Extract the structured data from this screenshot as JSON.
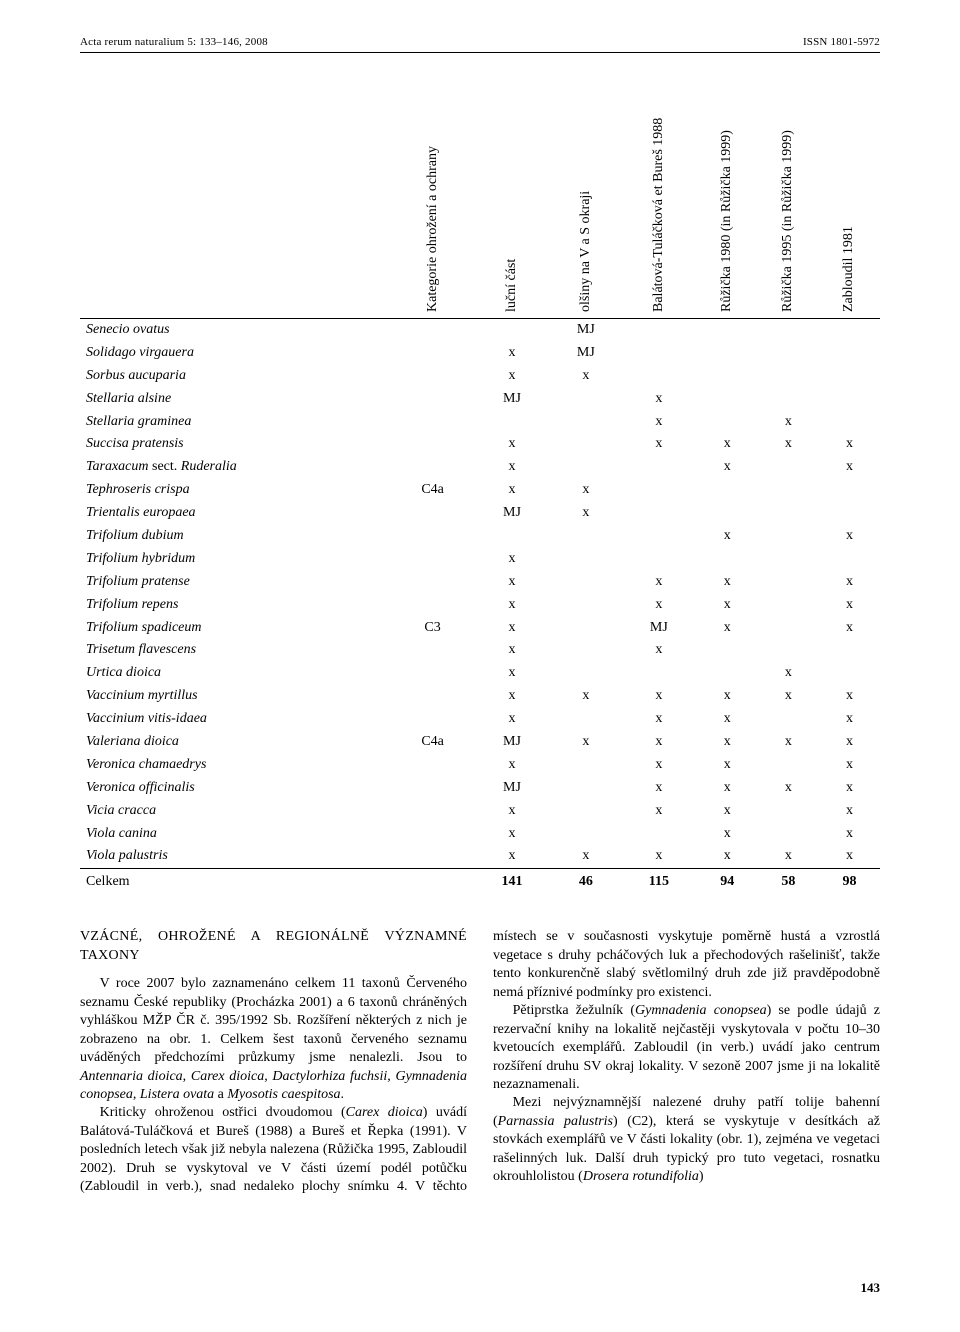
{
  "running_head": {
    "left": "Acta rerum naturalium 5: 133–146, 2008",
    "right": "ISSN 1801-5972"
  },
  "table": {
    "columns": [
      "Kategorie ohrožení a ochrany",
      "luční část",
      "olšiny na V a S okraji",
      "Balátová-Tuláčková et Bureš 1988",
      "Růžička 1980 (in Růžička 1999)",
      "Růžička 1995 (in Růžička 1999)",
      "Zabloudil 1981"
    ],
    "rows": [
      {
        "name": "Senecio ovatus",
        "cells": [
          "",
          "",
          "MJ",
          "",
          "",
          "",
          ""
        ]
      },
      {
        "name": "Solidago virgauera",
        "cells": [
          "",
          "x",
          "MJ",
          "",
          "",
          "",
          ""
        ]
      },
      {
        "name": "Sorbus aucuparia",
        "cells": [
          "",
          "x",
          "x",
          "",
          "",
          "",
          ""
        ]
      },
      {
        "name": "Stellaria alsine",
        "cells": [
          "",
          "MJ",
          "",
          "x",
          "",
          "",
          ""
        ]
      },
      {
        "name": "Stellaria graminea",
        "cells": [
          "",
          "",
          "",
          "x",
          "",
          "x",
          ""
        ]
      },
      {
        "name": "Succisa pratensis",
        "cells": [
          "",
          "x",
          "",
          "x",
          "x",
          "x",
          "x"
        ]
      },
      {
        "name": "Taraxacum <span class=\"nonitalic\">sect.</span> Ruderalia",
        "raw": true,
        "cells": [
          "",
          "x",
          "",
          "",
          "x",
          "",
          "x"
        ]
      },
      {
        "name": "Tephroseris crispa",
        "cells": [
          "C4a",
          "x",
          "x",
          "",
          "",
          "",
          ""
        ]
      },
      {
        "name": "Trientalis europaea",
        "cells": [
          "",
          "MJ",
          "x",
          "",
          "",
          "",
          ""
        ]
      },
      {
        "name": "Trifolium dubium",
        "cells": [
          "",
          "",
          "",
          "",
          "x",
          "",
          "x"
        ]
      },
      {
        "name": "Trifolium hybridum",
        "cells": [
          "",
          "x",
          "",
          "",
          "",
          "",
          ""
        ]
      },
      {
        "name": "Trifolium pratense",
        "cells": [
          "",
          "x",
          "",
          "x",
          "x",
          "",
          "x"
        ]
      },
      {
        "name": "Trifolium repens",
        "cells": [
          "",
          "x",
          "",
          "x",
          "x",
          "",
          "x"
        ]
      },
      {
        "name": "Trifolium spadiceum",
        "cells": [
          "C3",
          "x",
          "",
          "MJ",
          "x",
          "",
          "x"
        ]
      },
      {
        "name": "Trisetum flavescens",
        "cells": [
          "",
          "x",
          "",
          "x",
          "",
          "",
          ""
        ]
      },
      {
        "name": "Urtica dioica",
        "cells": [
          "",
          "x",
          "",
          "",
          "",
          "x",
          ""
        ]
      },
      {
        "name": "Vaccinium myrtillus",
        "cells": [
          "",
          "x",
          "x",
          "x",
          "x",
          "x",
          "x"
        ]
      },
      {
        "name": "Vaccinium vitis-idaea",
        "cells": [
          "",
          "x",
          "",
          "x",
          "x",
          "",
          "x"
        ]
      },
      {
        "name": "Valeriana dioica",
        "cells": [
          "C4a",
          "MJ",
          "x",
          "x",
          "x",
          "x",
          "x"
        ]
      },
      {
        "name": "Veronica chamaedrys",
        "cells": [
          "",
          "x",
          "",
          "x",
          "x",
          "",
          "x"
        ]
      },
      {
        "name": "Veronica officinalis",
        "cells": [
          "",
          "MJ",
          "",
          "x",
          "x",
          "x",
          "x"
        ]
      },
      {
        "name": "Vicia cracca",
        "cells": [
          "",
          "x",
          "",
          "x",
          "x",
          "",
          "x"
        ]
      },
      {
        "name": "Viola canina",
        "cells": [
          "",
          "x",
          "",
          "",
          "x",
          "",
          "x"
        ]
      },
      {
        "name": "Viola palustris",
        "cells": [
          "",
          "x",
          "x",
          "x",
          "x",
          "x",
          "x"
        ]
      }
    ],
    "totals": {
      "label": "Celkem",
      "cells": [
        "",
        "141",
        "46",
        "115",
        "94",
        "58",
        "98"
      ]
    }
  },
  "section_heading": "VZÁCNÉ, OHROŽENÉ A REGIONÁLNĚ VÝZNAMNÉ TAXONY",
  "paragraphs": [
    "V roce 2007 bylo zaznamenáno celkem 11 taxonů Červeného seznamu České republiky (Procházka 2001) a 6 taxonů chráněných vyhláškou MŽP ČR č. 395/1992 Sb. Rozšíření některých z nich je zobrazeno na obr. 1. Celkem šest taxonů červeného seznamu uváděných předchozími průzkumy jsme nenalezli. Jsou to <i>Antennaria dioica</i>, <i>Carex dioica</i>, <i>Dactylorhiza fuchsii</i>, <i>Gymnadenia conopsea</i>, <i>Listera ovata</i> a <i>Myosotis caespitosa</i>.",
    "Kriticky ohroženou ostřici dvoudomou (<i>Carex dioica</i>) uvádí Balátová-Tuláčková et Bureš (1988) a Bureš et Řepka (1991). V posledních letech však již nebyla nalezena (Růžička 1995, Zabloudil 2002). Druh se vyskytoval ve V části území podél potůčku (Zabloudil in verb.), snad nedaleko plochy snímku 4. V těchto místech se v současnosti vyskytuje poměrně hustá a vzrostlá vegetace s druhy pcháčových luk a přechodových rašelinišť, takže tento konkurenčně slabý světlomilný druh zde již pravděpodobně nemá příznivé podmínky pro existenci.",
    "Pětiprstka žežulník (<i>Gymnadenia conopsea</i>) se podle údajů z rezervační knihy na lokalitě nejčastěji vyskytovala v počtu 10–30 kvetoucích exemplářů. Zabloudil (in verb.) uvádí jako centrum rozšíření druhu SV okraj lokality. V sezoně 2007 jsme ji na lokalitě nezaznamenali.",
    "Mezi nejvýznamnější nalezené druhy patří tolije bahenní (<i>Parnassia palustris</i>) (C2), která se vyskytuje v desítkách až stovkách exemplářů ve V části lokality (obr. 1), zejména ve vegetaci rašelinných luk. Další druh typický pro tuto vegetaci, rosnatku okrouhlolistou (<i>Drosera rotundifolia</i>)"
  ],
  "page_number": "143"
}
